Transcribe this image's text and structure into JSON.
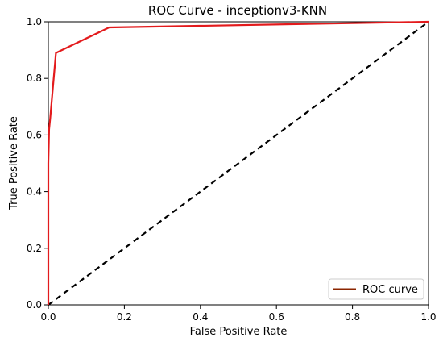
{
  "chart_data": {
    "type": "line",
    "title": "ROC Curve - inceptionv3-KNN",
    "xlabel": "False Positive Rate",
    "ylabel": "True Positive Rate",
    "xlim": [
      0.0,
      1.0
    ],
    "ylim": [
      0.0,
      1.0
    ],
    "x_ticks": [
      "0.0",
      "0.2",
      "0.4",
      "0.6",
      "0.8",
      "1.0"
    ],
    "y_ticks": [
      "0.0",
      "0.2",
      "0.4",
      "0.6",
      "0.8",
      "1.0"
    ],
    "grid": false,
    "legend": {
      "placement": "lower-right",
      "entries": [
        "ROC curve"
      ]
    },
    "series": [
      {
        "name": "ROC curve",
        "style": "solid",
        "color": "#e31a1c",
        "x": [
          0.0,
          0.0,
          0.002,
          0.005,
          0.02,
          0.16,
          1.0
        ],
        "y": [
          0.0,
          0.5,
          0.62,
          0.66,
          0.89,
          0.98,
          1.0
        ]
      },
      {
        "style": "dashed",
        "color": "#000000",
        "x": [
          0.0,
          1.0
        ],
        "y": [
          0.0,
          1.0
        ]
      }
    ],
    "legend_line_color": "#8b2500"
  }
}
